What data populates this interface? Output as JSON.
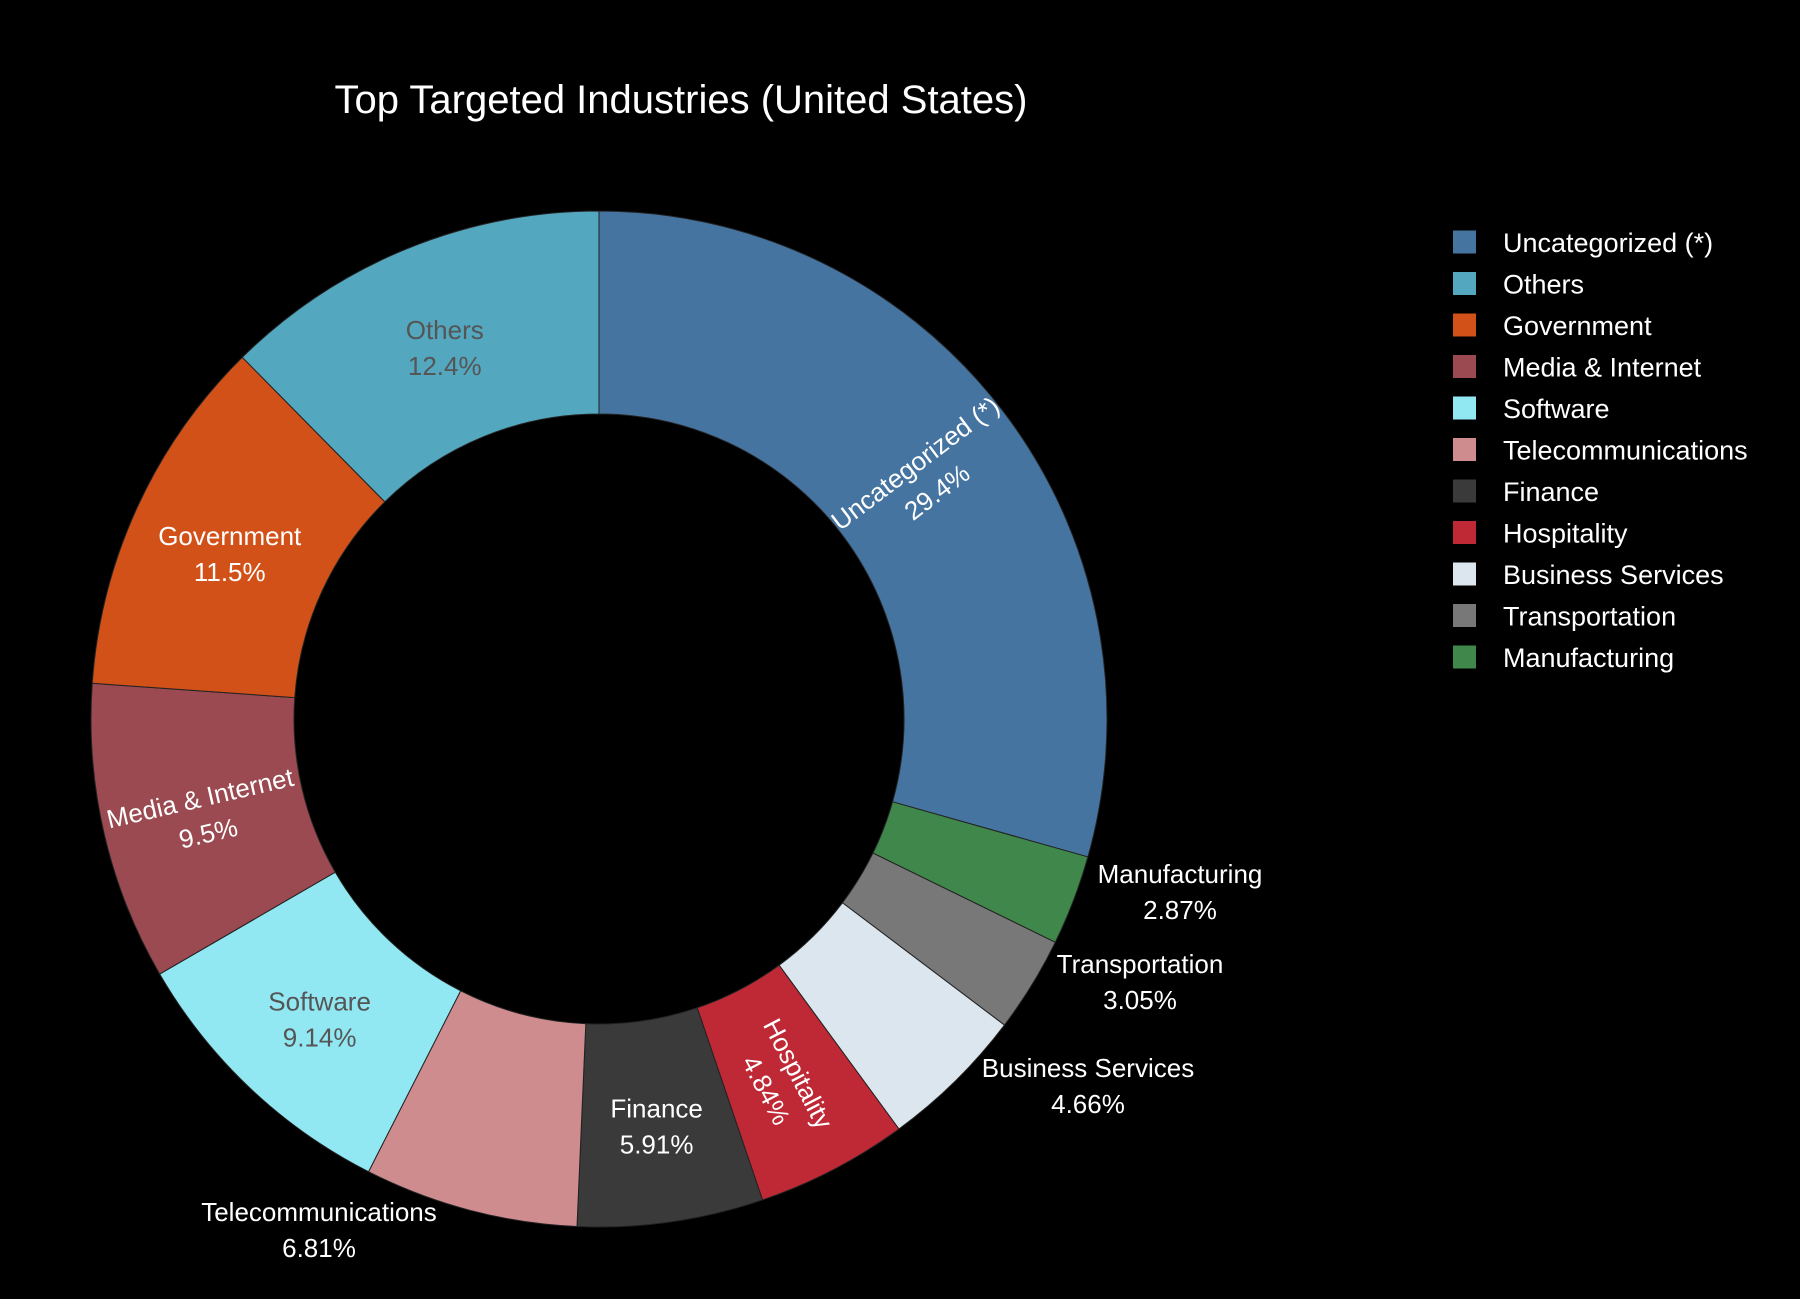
{
  "chart_data": {
    "type": "pie",
    "hole": true,
    "title": "Top Targeted Industries (United States)",
    "legend_position": "top-right",
    "slices": [
      {
        "label": "Uncategorized (*)",
        "value": 29.4,
        "text": "29.4%",
        "color": "#4674a0",
        "label_color": "#ffffff"
      },
      {
        "label": "Manufacturing",
        "value": 2.87,
        "text": "2.87%",
        "color": "#3f874b",
        "label_color": "#ffffff"
      },
      {
        "label": "Transportation",
        "value": 3.05,
        "text": "3.05%",
        "color": "#787878",
        "label_color": "#ffffff"
      },
      {
        "label": "Business Services",
        "value": 4.66,
        "text": "4.66%",
        "color": "#dce6ee",
        "label_color": "#ffffff"
      },
      {
        "label": "Hospitality",
        "value": 4.84,
        "text": "4.84%",
        "color": "#bf2835",
        "label_color": "#ffffff"
      },
      {
        "label": "Finance",
        "value": 5.91,
        "text": "5.91%",
        "color": "#3a3a3a",
        "label_color": "#ffffff"
      },
      {
        "label": "Telecommunications",
        "value": 6.81,
        "text": "6.81%",
        "color": "#cf8c8f",
        "label_color": "#ffffff"
      },
      {
        "label": "Software",
        "value": 9.14,
        "text": "9.14%",
        "color": "#92e8f2",
        "label_color": "#555555"
      },
      {
        "label": "Media & Internet",
        "value": 9.5,
        "text": "9.5%",
        "color": "#9a4a50",
        "label_color": "#ffffff"
      },
      {
        "label": "Government",
        "value": 11.5,
        "text": "11.5%",
        "color": "#d25118",
        "label_color": "#ffffff"
      },
      {
        "label": "Others",
        "value": 12.4,
        "text": "12.4%",
        "color": "#53a7bf",
        "label_color": "#555555"
      }
    ],
    "legend": [
      "Uncategorized (*)",
      "Others",
      "Government",
      "Media & Internet",
      "Software",
      "Telecommunications",
      "Finance",
      "Hospitality",
      "Business Services",
      "Transportation",
      "Manufacturing"
    ]
  }
}
